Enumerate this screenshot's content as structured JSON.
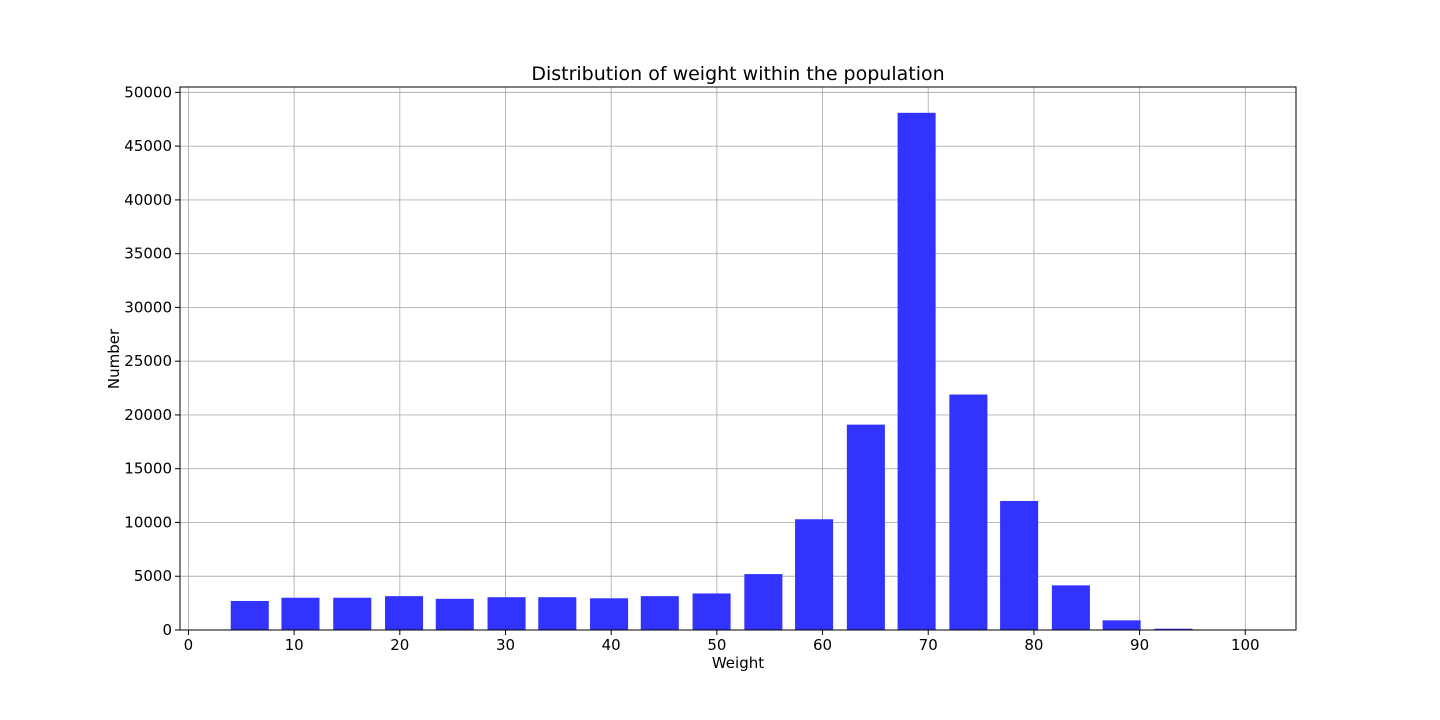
{
  "chart_data": {
    "type": "bar",
    "title": "Distribution of weight within the population",
    "xlabel": "Weight",
    "ylabel": "Number",
    "bar_color": "#3333ff",
    "grid": true,
    "xlim": [
      -0.8,
      104.8
    ],
    "ylim": [
      0,
      50500
    ],
    "xticks": [
      0,
      10,
      20,
      30,
      40,
      50,
      60,
      70,
      80,
      90,
      100
    ],
    "yticks": [
      0,
      5000,
      10000,
      15000,
      20000,
      25000,
      30000,
      35000,
      40000,
      45000,
      50000
    ],
    "bar_width": 3.6,
    "x": [
      5.8,
      10.6,
      15.5,
      20.4,
      25.2,
      30.1,
      34.9,
      39.8,
      44.6,
      49.5,
      54.4,
      59.2,
      64.1,
      68.9,
      73.8,
      78.6,
      83.5,
      88.3,
      93.2,
      98.1
    ],
    "values": [
      2700,
      3000,
      3000,
      3150,
      2900,
      3050,
      3050,
      2950,
      3150,
      3400,
      5200,
      10300,
      19100,
      48100,
      21900,
      12000,
      4150,
      900,
      120,
      10
    ]
  }
}
